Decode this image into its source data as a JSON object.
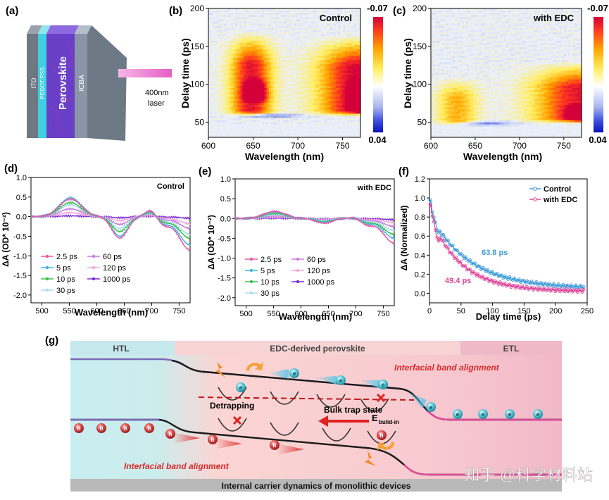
{
  "panel_labels": {
    "a": "(a)",
    "b": "(b)",
    "c": "(c)",
    "d": "(d)",
    "e": "(e)",
    "f": "(f)",
    "g": "(g)"
  },
  "device": {
    "layers": [
      "ITO",
      "PEDOT:PSS",
      "Perovskite",
      "ICBA"
    ],
    "laser_label_line1": "400nm",
    "laser_label_line2": "laser",
    "colors": {
      "ito": "#6f7780",
      "pedot": "#3fd0e0",
      "perovskite": "#6a3fc8",
      "icba": "#8a96a8",
      "laser": "#e95fc4"
    }
  },
  "chart_data": [
    {
      "id": "b",
      "type": "heatmap",
      "title": "Control",
      "xlabel": "Wavelength (nm)",
      "ylabel": "Delay time (ps)",
      "xlim": [
        600,
        770
      ],
      "ylim": [
        30,
        200
      ],
      "xticks": [
        600,
        650,
        700,
        750
      ],
      "yticks": [
        50,
        100,
        150,
        200
      ],
      "colorbar": {
        "max_label": "-0.07",
        "min_label": "0.04",
        "max": -0.07,
        "min": 0.04
      },
      "features": [
        {
          "kind": "bleach",
          "center_nm": 648,
          "sigma_nm": 22,
          "from_ps": 58,
          "to_ps": 170,
          "strength": 0.9
        },
        {
          "kind": "bleach",
          "center_nm": 652,
          "sigma_nm": 10,
          "from_ps": 75,
          "to_ps": 110,
          "strength": 1.3
        },
        {
          "kind": "bleach",
          "center_nm": 768,
          "sigma_nm": 42,
          "from_ps": 58,
          "to_ps": 165,
          "strength": 1.0
        },
        {
          "kind": "bleach",
          "center_nm": 770,
          "sigma_nm": 10,
          "from_ps": 62,
          "to_ps": 110,
          "strength": 1.7
        },
        {
          "kind": "absorption",
          "center_nm": 672,
          "sigma_nm": 28,
          "from_ps": 55,
          "to_ps": 62,
          "strength": 1.0
        }
      ]
    },
    {
      "id": "c",
      "type": "heatmap",
      "title": "with EDC",
      "xlabel": "Wavelength (nm)",
      "ylabel": "Delay time (ps)",
      "xlim": [
        600,
        770
      ],
      "ylim": [
        30,
        200
      ],
      "xticks": [
        600,
        650,
        700,
        750
      ],
      "yticks": [
        50,
        100,
        150,
        200
      ],
      "colorbar": {
        "max_label": "-0.07",
        "min_label": "0.04",
        "max": -0.07,
        "min": 0.04
      },
      "features": [
        {
          "kind": "bleach",
          "center_nm": 630,
          "sigma_nm": 22,
          "from_ps": 45,
          "to_ps": 110,
          "strength": 0.45
        },
        {
          "kind": "bleach",
          "center_nm": 770,
          "sigma_nm": 50,
          "from_ps": 48,
          "to_ps": 130,
          "strength": 0.9
        },
        {
          "kind": "bleach",
          "center_nm": 770,
          "sigma_nm": 14,
          "from_ps": 50,
          "to_ps": 75,
          "strength": 1.3
        },
        {
          "kind": "absorption",
          "center_nm": 662,
          "sigma_nm": 30,
          "from_ps": 44,
          "to_ps": 52,
          "strength": 0.9
        }
      ]
    },
    {
      "id": "d",
      "type": "line",
      "title": "Control",
      "xlabel": "Wavelength (nm)",
      "ylabel": "ΔA (OD* 10⁻²)",
      "xlim": [
        480,
        770
      ],
      "ylim": [
        -2.2,
        1.0
      ],
      "xticks": [
        500,
        550,
        600,
        650,
        700,
        750
      ],
      "yticks": [
        1.0,
        0.5,
        0.0,
        -0.5,
        -1.0,
        -1.5,
        -2.0
      ],
      "ytick_labels": [
        "1.0",
        "0.5",
        "0.0",
        "-0.5",
        "-1.0",
        "-1.5",
        "-2.0"
      ],
      "series": [
        {
          "name": "2.5 ps",
          "color": "#e85aa5",
          "a1": 0.45,
          "a2": -0.55,
          "a3": -0.85
        },
        {
          "name": "5 ps",
          "color": "#3ab7e6",
          "a1": 0.48,
          "a2": -0.5,
          "a3": -0.72
        },
        {
          "name": "10 ps",
          "color": "#3fbf4e",
          "a1": 0.36,
          "a2": -0.38,
          "a3": -0.55
        },
        {
          "name": "30 ps",
          "color": "#a9dcf2",
          "a1": 0.3,
          "a2": -0.3,
          "a3": -0.45
        },
        {
          "name": "60 ps",
          "color": "#c57be0",
          "a1": 0.2,
          "a2": -0.2,
          "a3": -0.3
        },
        {
          "name": "120 ps",
          "color": "#f1a9d8",
          "a1": 0.1,
          "a2": -0.1,
          "a3": -0.18
        },
        {
          "name": "1000 ps",
          "color": "#7a2bd6",
          "a1": 0.02,
          "a2": -0.03,
          "a3": -0.04
        }
      ]
    },
    {
      "id": "e",
      "type": "line",
      "title": "with EDC",
      "xlabel": "Wavelength (nm)",
      "ylabel": "ΔA (OD* 10⁻²)",
      "xlim": [
        480,
        770
      ],
      "ylim": [
        -2.2,
        1.0
      ],
      "xticks": [
        500,
        550,
        600,
        650,
        700,
        750
      ],
      "yticks": [
        1.0,
        0.5,
        0.0,
        -0.5,
        -1.0,
        -1.5,
        -2.0
      ],
      "ytick_labels": [
        "1.0",
        "0.5",
        "0.0",
        "-0.5",
        "-1.0",
        "-1.5",
        "-2.0"
      ],
      "series": [
        {
          "name": "2.5 ps",
          "color": "#e85aa5",
          "a1": 0.18,
          "a2": -0.12,
          "a3": -0.62
        },
        {
          "name": "5 ps",
          "color": "#3ab7e6",
          "a1": 0.16,
          "a2": -0.1,
          "a3": -0.5
        },
        {
          "name": "10 ps",
          "color": "#3fbf4e",
          "a1": 0.13,
          "a2": -0.08,
          "a3": -0.4
        },
        {
          "name": "30 ps",
          "color": "#a9dcf2",
          "a1": 0.1,
          "a2": -0.06,
          "a3": -0.3
        },
        {
          "name": "60 ps",
          "color": "#c57be0",
          "a1": 0.07,
          "a2": -0.04,
          "a3": -0.2
        },
        {
          "name": "120 ps",
          "color": "#f1a9d8",
          "a1": 0.04,
          "a2": -0.02,
          "a3": -0.1
        },
        {
          "name": "1000 ps",
          "color": "#7a2bd6",
          "a1": 0.01,
          "a2": -0.01,
          "a3": -0.03
        }
      ]
    },
    {
      "id": "f",
      "type": "line",
      "xlabel": "Delay time (ps)",
      "ylabel": "ΔA (Normalized)",
      "xlim": [
        0,
        250
      ],
      "ylim": [
        -0.1,
        1.2
      ],
      "xticks": [
        0,
        50,
        100,
        150,
        200,
        250
      ],
      "yticks": [
        0.0,
        0.2,
        0.4,
        0.6,
        0.8,
        1.0,
        1.2
      ],
      "ytick_labels": [
        "0.0",
        "0.2",
        "0.4",
        "0.6",
        "0.8",
        "1.0",
        "1.2"
      ],
      "series": [
        {
          "name": "Control",
          "color": "#3a9ad9",
          "tau_ps": 63.8,
          "offset": 0.05,
          "annotation": "63.8 ps"
        },
        {
          "name": "with EDC",
          "color": "#e0449a",
          "tau_ps": 49.4,
          "offset": 0.02,
          "annotation": "49.4 ps"
        }
      ]
    }
  ],
  "schematic": {
    "regions": {
      "htl": "HTL",
      "perovskite": "EDC-derived perovskite",
      "etl": "ETL"
    },
    "labels": {
      "interfacial_top": "Interfacial band alignment",
      "interfacial_bottom": "Interfacial band alignment",
      "detrapping": "Detrapping",
      "bulk_trap": "Bulk trap state",
      "field_main": "E",
      "field_sub": "bulid-in",
      "caption": "Internal carrier dynamics of monolithic devices",
      "electron": "e",
      "hole": "h"
    },
    "colors": {
      "htl": "#bfe6ea",
      "perovskite": "#f6cdd0",
      "etl": "#f0b7c8",
      "accent_red": "#d92b2b",
      "band": "#1a1a1a"
    }
  },
  "watermark": "知乎 @科学材料站"
}
